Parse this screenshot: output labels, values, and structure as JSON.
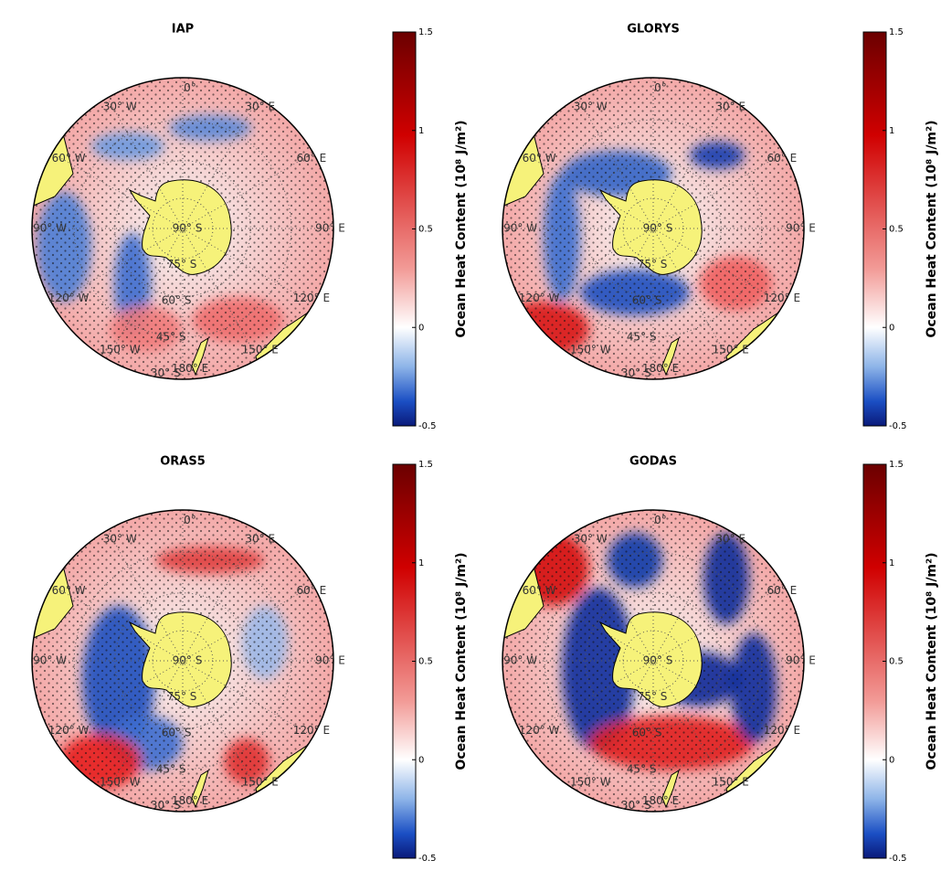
{
  "panels": [
    {
      "title": "IAP"
    },
    {
      "title": "GLORYS"
    },
    {
      "title": "ORAS5"
    },
    {
      "title": "GODAS"
    }
  ],
  "colorbar": {
    "label": "Ocean Heat Content (10⁸ J/m²)",
    "lim": [
      -0.5,
      1.5
    ],
    "ticks": [
      -0.5,
      0,
      0.5,
      1,
      1.5
    ]
  },
  "map_labels": {
    "longitude": [
      "0°",
      "30° E",
      "60° E",
      "90° E",
      "120° E",
      "150° E",
      "180° E",
      "150° W",
      "120° W",
      "90° W",
      "60° W",
      "30° W"
    ],
    "latitude": [
      "90° S",
      "75° S",
      "60° S",
      "45° S",
      "30° S"
    ]
  }
}
